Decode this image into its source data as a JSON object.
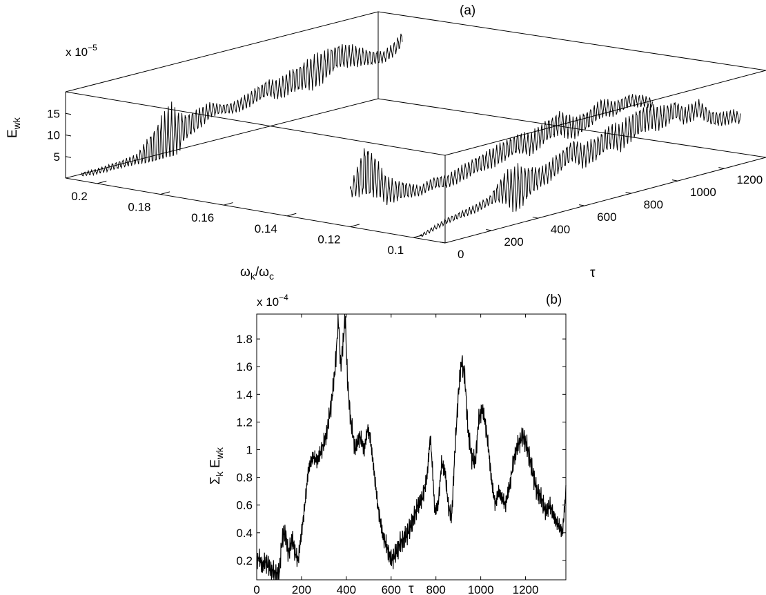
{
  "chart_data": [
    {
      "panel": "(a)",
      "type": "line",
      "view": "3d-waterfall",
      "xlabel_main": "ω",
      "xlabel_sub": "k",
      "xlabel_slash": "/ω",
      "xlabel_sub2": "c",
      "ylabel_main": "τ",
      "zlabel_main": "E",
      "zlabel_sub": "wk",
      "z_multiplier_base": "x 10",
      "z_multiplier_exp": "−5",
      "x_ticks": [
        "0.2",
        "0.18",
        "0.16",
        "0.14",
        "0.12",
        "0.1"
      ],
      "x_tick_values": [
        0.2,
        0.18,
        0.16,
        0.14,
        0.12,
        0.1
      ],
      "xlim": [
        0.21,
        0.09
      ],
      "y_ticks": [
        "0",
        "200",
        "400",
        "600",
        "800",
        "1000",
        "1200"
      ],
      "y_tick_values": [
        0,
        200,
        400,
        600,
        800,
        1000,
        1200
      ],
      "ylim": [
        0,
        1380
      ],
      "z_ticks": [
        "5",
        "10",
        "15"
      ],
      "z_tick_values": [
        5,
        10,
        15
      ],
      "zlim": [
        0,
        20
      ],
      "series": [
        {
          "omega": 0.098,
          "points": [
            [
              0,
              0.5
            ],
            [
              60,
              1.5
            ],
            [
              120,
              2.5
            ],
            [
              180,
              3
            ],
            [
              240,
              3.5
            ],
            [
              300,
              4.5
            ],
            [
              360,
              6.5
            ],
            [
              420,
              5.5
            ],
            [
              480,
              6.5
            ],
            [
              540,
              7
            ],
            [
              600,
              9
            ],
            [
              660,
              11
            ],
            [
              700,
              9
            ],
            [
              760,
              10
            ],
            [
              820,
              12
            ],
            [
              860,
              11
            ],
            [
              920,
              13
            ],
            [
              980,
              14
            ],
            [
              1040,
              13
            ],
            [
              1100,
              14
            ],
            [
              1140,
              12
            ],
            [
              1200,
              13
            ],
            [
              1250,
              10
            ],
            [
              1300,
              9
            ],
            [
              1350,
              9
            ],
            [
              1380,
              8
            ]
          ],
          "ripple": [
            [
              0,
              0.3
            ],
            [
              300,
              1
            ],
            [
              420,
              5
            ],
            [
              520,
              2
            ],
            [
              760,
              2.5
            ],
            [
              940,
              3
            ],
            [
              1100,
              2
            ],
            [
              1380,
              1.2
            ]
          ]
        },
        {
          "omega": 0.12,
          "points": [
            [
              0,
              8
            ],
            [
              60,
              12
            ],
            [
              110,
              10
            ],
            [
              160,
              6
            ],
            [
              240,
              5
            ],
            [
              300,
              4
            ],
            [
              360,
              5
            ],
            [
              420,
              4.5
            ],
            [
              480,
              5.5
            ],
            [
              540,
              6.5
            ],
            [
              600,
              7
            ],
            [
              660,
              8
            ],
            [
              720,
              9
            ],
            [
              780,
              8
            ],
            [
              840,
              10
            ],
            [
              900,
              11
            ],
            [
              960,
              9
            ],
            [
              1020,
              10
            ],
            [
              1080,
              12
            ],
            [
              1140,
              11
            ],
            [
              1200,
              12
            ],
            [
              1260,
              11
            ],
            [
              1300,
              10
            ]
          ],
          "ripple": [
            [
              0,
              1
            ],
            [
              70,
              6
            ],
            [
              140,
              3
            ],
            [
              300,
              1
            ],
            [
              600,
              2
            ],
            [
              900,
              2.5
            ],
            [
              1300,
              1
            ]
          ]
        },
        {
          "omega": 0.205,
          "points": [
            [
              0,
              1.5
            ],
            [
              60,
              1.2
            ],
            [
              120,
              1.3
            ],
            [
              180,
              1.4
            ],
            [
              240,
              1.6
            ],
            [
              280,
              2.5
            ],
            [
              330,
              3.5
            ],
            [
              370,
              4.5
            ],
            [
              410,
              5
            ],
            [
              450,
              6
            ],
            [
              500,
              7
            ],
            [
              560,
              8.5
            ],
            [
              600,
              8
            ],
            [
              650,
              7.5
            ],
            [
              700,
              8
            ],
            [
              750,
              9
            ],
            [
              800,
              10
            ],
            [
              850,
              9
            ],
            [
              900,
              10
            ],
            [
              960,
              10.5
            ],
            [
              1020,
              11
            ],
            [
              1060,
              12
            ],
            [
              1100,
              13
            ],
            [
              1150,
              12.5
            ],
            [
              1200,
              11.5
            ],
            [
              1250,
              10.5
            ],
            [
              1300,
              10
            ],
            [
              1340,
              11
            ],
            [
              1380,
              13
            ]
          ],
          "ripple": [
            [
              0,
              0.4
            ],
            [
              240,
              1
            ],
            [
              330,
              5
            ],
            [
              380,
              7
            ],
            [
              440,
              3
            ],
            [
              600,
              1
            ],
            [
              850,
              2
            ],
            [
              1000,
              3.5
            ],
            [
              1120,
              2.5
            ],
            [
              1300,
              1.2
            ],
            [
              1380,
              1.5
            ]
          ]
        }
      ]
    },
    {
      "panel": "(b)",
      "type": "line",
      "xlabel": "τ",
      "ylabel_sigma": "Σ",
      "ylabel_sub1": "k",
      "ylabel_main": " E",
      "ylabel_sub2": "wk",
      "y_multiplier_base": "x 10",
      "y_multiplier_exp": "−4",
      "xlim": [
        0,
        1380
      ],
      "ylim": [
        0.06,
        1.98
      ],
      "x_ticks": [
        "0",
        "200",
        "400",
        "600",
        "800",
        "1000",
        "1200"
      ],
      "x_tick_values": [
        0,
        200,
        400,
        600,
        800,
        1000,
        1200
      ],
      "y_ticks": [
        "0.2",
        "0.4",
        "0.6",
        "0.8",
        "1",
        "1.2",
        "1.4",
        "1.6",
        "1.8"
      ],
      "y_tick_values": [
        0.2,
        0.4,
        0.6,
        0.8,
        1.0,
        1.2,
        1.4,
        1.6,
        1.8
      ],
      "series": [
        {
          "x": [
            0,
            10,
            20,
            30,
            40,
            55,
            70,
            85,
            100,
            110,
            120,
            130,
            140,
            150,
            160,
            170,
            185,
            200,
            215,
            230,
            250,
            270,
            290,
            310,
            330,
            345,
            355,
            365,
            375,
            385,
            395,
            405,
            420,
            440,
            460,
            480,
            495,
            505,
            520,
            540,
            560,
            580,
            600,
            620,
            640,
            660,
            680,
            700,
            720,
            740,
            760,
            775,
            785,
            795,
            810,
            825,
            840,
            855,
            870,
            885,
            900,
            915,
            930,
            945,
            960,
            975,
            990,
            1005,
            1020,
            1035,
            1050,
            1065,
            1080,
            1095,
            1110,
            1130,
            1150,
            1170,
            1190,
            1210,
            1230,
            1250,
            1270,
            1290,
            1310,
            1330,
            1350,
            1365,
            1380
          ],
          "y": [
            0.2,
            0.22,
            0.18,
            0.16,
            0.2,
            0.15,
            0.12,
            0.1,
            0.1,
            0.3,
            0.4,
            0.38,
            0.25,
            0.3,
            0.36,
            0.26,
            0.2,
            0.4,
            0.6,
            0.85,
            0.95,
            0.92,
            1.0,
            1.1,
            1.3,
            1.5,
            1.7,
            1.95,
            1.6,
            1.75,
            1.98,
            1.5,
            1.2,
            1.0,
            1.1,
            1.0,
            1.15,
            1.1,
            0.9,
            0.6,
            0.4,
            0.3,
            0.2,
            0.25,
            0.32,
            0.36,
            0.42,
            0.5,
            0.6,
            0.65,
            0.8,
            1.1,
            0.85,
            0.55,
            0.6,
            0.9,
            0.85,
            0.6,
            0.5,
            1.0,
            1.4,
            1.65,
            1.5,
            1.1,
            0.95,
            0.9,
            1.2,
            1.3,
            1.2,
            1.0,
            0.75,
            0.6,
            0.7,
            0.65,
            0.6,
            0.75,
            0.95,
            1.05,
            1.1,
            1.0,
            0.85,
            0.7,
            0.65,
            0.55,
            0.6,
            0.5,
            0.45,
            0.4,
            0.7
          ]
        }
      ]
    }
  ]
}
